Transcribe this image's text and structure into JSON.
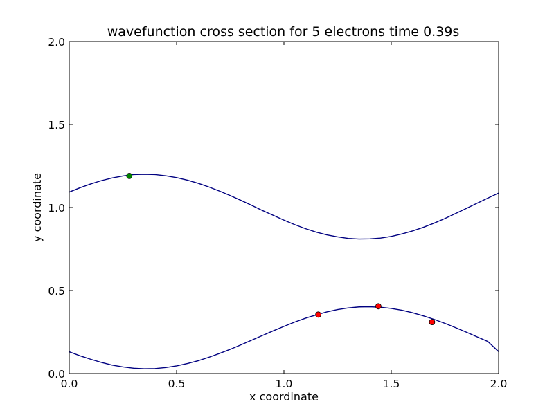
{
  "chart_data": {
    "type": "line",
    "title": "wavefunction cross section for 5 electrons time 0.39s",
    "xlabel": "x coordinate",
    "ylabel": "y coordinate",
    "xlim": [
      0.0,
      2.0
    ],
    "ylim": [
      0.0,
      2.0
    ],
    "x_ticks": [
      0.0,
      0.5,
      1.0,
      1.5,
      2.0
    ],
    "y_ticks": [
      0.0,
      0.5,
      1.0,
      1.5,
      2.0
    ],
    "x_tick_labels": [
      "0.0",
      "0.5",
      "1.0",
      "1.5",
      "2.0"
    ],
    "y_tick_labels": [
      "0.0",
      "0.5",
      "1.0",
      "1.5",
      "2.0"
    ],
    "grid": false,
    "legend": "none",
    "series": [
      {
        "kind": "line",
        "color": "#000080",
        "x": [
          0.0,
          0.05,
          0.1,
          0.15,
          0.2,
          0.25,
          0.3,
          0.35,
          0.4,
          0.45,
          0.5,
          0.55,
          0.6,
          0.65,
          0.7,
          0.75,
          0.8,
          0.85,
          0.9,
          0.95,
          1.0,
          1.05,
          1.1,
          1.15,
          1.2,
          1.25,
          1.3,
          1.35,
          1.4,
          1.45,
          1.5,
          1.55,
          1.6,
          1.65,
          1.7,
          1.75,
          1.8,
          1.85,
          1.9,
          1.95,
          2.0
        ],
        "y": [
          1.093,
          1.119,
          1.142,
          1.162,
          1.178,
          1.19,
          1.198,
          1.2,
          1.198,
          1.191,
          1.18,
          1.165,
          1.146,
          1.124,
          1.099,
          1.072,
          1.043,
          1.013,
          0.982,
          0.953,
          0.924,
          0.897,
          0.873,
          0.852,
          0.835,
          0.823,
          0.814,
          0.81,
          0.811,
          0.816,
          0.826,
          0.841,
          0.859,
          0.881,
          0.906,
          0.934,
          0.964,
          0.995,
          1.026,
          1.057,
          1.087
        ]
      },
      {
        "kind": "line",
        "color": "#000080",
        "x": [
          0.0,
          0.05,
          0.1,
          0.15,
          0.2,
          0.25,
          0.3,
          0.35,
          0.4,
          0.45,
          0.5,
          0.55,
          0.6,
          0.65,
          0.7,
          0.75,
          0.8,
          0.85,
          0.9,
          0.95,
          1.0,
          1.05,
          1.1,
          1.15,
          1.2,
          1.25,
          1.3,
          1.35,
          1.4,
          1.45,
          1.5,
          1.55,
          1.6,
          1.65,
          1.7,
          1.75,
          1.8,
          1.85,
          1.9,
          1.95,
          2.0
        ],
        "y": [
          0.131,
          0.107,
          0.086,
          0.067,
          0.051,
          0.04,
          0.032,
          0.029,
          0.03,
          0.036,
          0.046,
          0.06,
          0.077,
          0.098,
          0.121,
          0.146,
          0.173,
          0.201,
          0.229,
          0.257,
          0.284,
          0.31,
          0.333,
          0.353,
          0.371,
          0.385,
          0.395,
          0.401,
          0.402,
          0.399,
          0.392,
          0.381,
          0.366,
          0.347,
          0.326,
          0.302,
          0.276,
          0.249,
          0.221,
          0.193,
          0.132
        ]
      },
      {
        "kind": "scatter",
        "color": "#008000",
        "x": [
          0.28
        ],
        "y": [
          1.19
        ]
      },
      {
        "kind": "scatter",
        "color": "#ff0000",
        "x": [
          1.16,
          1.44,
          1.69
        ],
        "y": [
          0.355,
          0.405,
          0.31
        ]
      }
    ]
  }
}
